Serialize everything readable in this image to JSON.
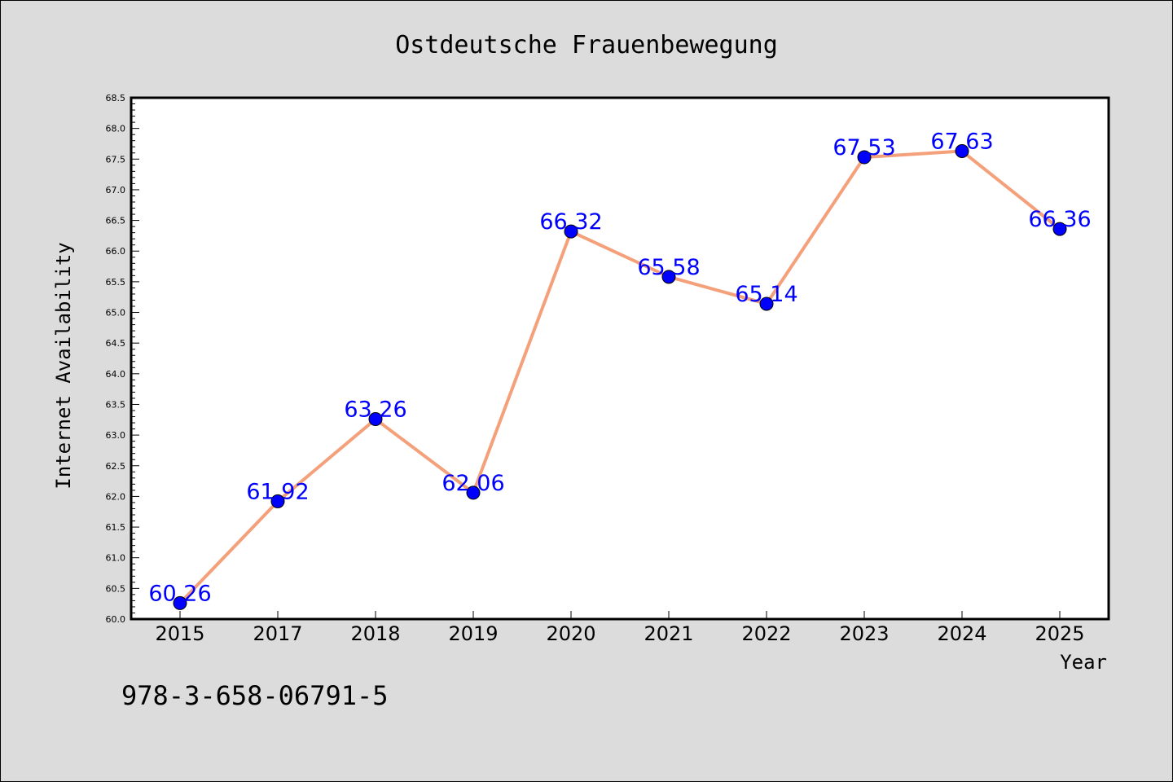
{
  "chart_data": {
    "type": "line",
    "title": "Ostdeutsche Frauenbewegung",
    "xlabel": "Year",
    "ylabel": "Internet Availability",
    "categories": [
      "2015",
      "2017",
      "2018",
      "2019",
      "2020",
      "2021",
      "2022",
      "2023",
      "2024",
      "2025"
    ],
    "series": [
      {
        "values": [
          60.26,
          61.92,
          63.26,
          62.06,
          66.32,
          65.58,
          65.14,
          67.53,
          67.63,
          66.36
        ],
        "labels": [
          "60.26",
          "61.92",
          "63.26",
          "62.06",
          "66.32",
          "65.58",
          "65.14",
          "67.53",
          "67.63",
          "66.36"
        ],
        "line_color": "#f4a07a",
        "marker_color": "#0000ff"
      }
    ],
    "ylim": [
      60.0,
      68.5
    ],
    "yticks": [
      "60.0",
      "60.5",
      "61.0",
      "61.5",
      "62.0",
      "62.5",
      "63.0",
      "63.5",
      "64.0",
      "64.5",
      "65.0",
      "65.5",
      "66.0",
      "66.5",
      "67.0",
      "67.5",
      "68.0",
      "68.5"
    ],
    "grid": false,
    "legend": "none"
  },
  "footer": {
    "isbn": "978-3-658-06791-5"
  }
}
